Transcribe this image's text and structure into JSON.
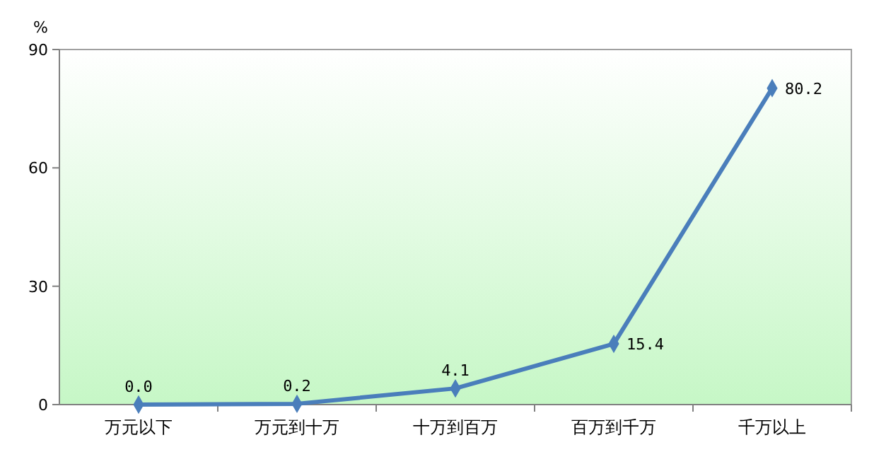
{
  "chart_data": {
    "type": "line",
    "ylabel": "%",
    "categories": [
      "万元以下",
      "万元到十万",
      "十万到百万",
      "百万到千万",
      "千万以上"
    ],
    "series": [
      {
        "color": "#4a7ebb",
        "values": [
          0,
          0.2,
          4.1,
          15.4,
          80.2
        ],
        "value_labels": [
          "0.0",
          "0.2",
          "4.1",
          "15.4",
          "80.2"
        ]
      }
    ],
    "ylim": [
      0,
      90
    ],
    "yticks": [
      0,
      30,
      60,
      90
    ],
    "marker": "diamond",
    "grid": false
  }
}
